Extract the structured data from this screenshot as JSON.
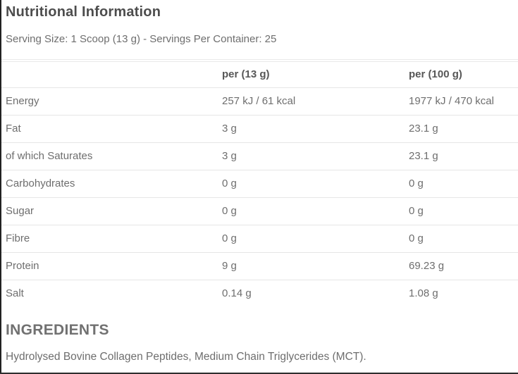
{
  "page": {
    "title": "Nutritional Information",
    "serving_info": "Serving Size: 1 Scoop (13 g) - Servings Per Container: 25"
  },
  "table": {
    "columns": [
      "",
      "per (13 g)",
      "per (100 g)"
    ],
    "rows": [
      {
        "label": "Energy",
        "per_13g": "257 kJ / 61 kcal",
        "per_100g": "1977 kJ / 470 kcal"
      },
      {
        "label": "Fat",
        "per_13g": "3 g",
        "per_100g": "23.1 g"
      },
      {
        "label": "of which Saturates",
        "per_13g": "3 g",
        "per_100g": "23.1 g"
      },
      {
        "label": "Carbohydrates",
        "per_13g": "0 g",
        "per_100g": "0 g"
      },
      {
        "label": "Sugar",
        "per_13g": "0 g",
        "per_100g": "0 g"
      },
      {
        "label": "Fibre",
        "per_13g": "0 g",
        "per_100g": "0 g"
      },
      {
        "label": "Protein",
        "per_13g": "9 g",
        "per_100g": "69.23 g"
      },
      {
        "label": "Salt",
        "per_13g": "0.14 g",
        "per_100g": "1.08 g"
      }
    ]
  },
  "ingredients": {
    "heading": "INGREDIENTS",
    "text": "Hydrolysed Bovine Collagen Peptides, Medium Chain Triglycerides (MCT)."
  },
  "colors": {
    "title_text": "#4d4d4d",
    "body_text": "#6e6e6e",
    "divider": "#e6e6e6",
    "edge_line": "#222222"
  }
}
